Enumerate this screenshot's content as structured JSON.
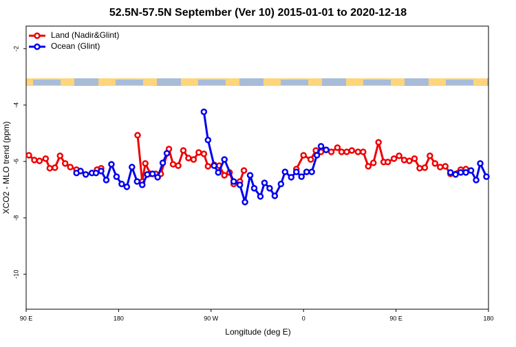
{
  "chart_data": {
    "type": "line",
    "title": "52.5N-57.5N September (Ver 10)   2015-01-01 to 2020-12-18",
    "x_label": "Longitude (deg E)",
    "y_label": "XCO2 - MLO trend (ppm)",
    "xlim": [
      90,
      540
    ],
    "ylim": [
      -11.24,
      -1.2
    ],
    "xticks": [
      {
        "value": 90,
        "label": "90 E"
      },
      {
        "value": 180,
        "label": "180"
      },
      {
        "value": 270,
        "label": "90 W"
      },
      {
        "value": 360,
        "label": "0"
      },
      {
        "value": 450,
        "label": "90 E"
      },
      {
        "value": 540,
        "label": "180"
      }
    ],
    "yticks": [
      -2,
      -4,
      -6,
      -8,
      -10
    ],
    "legend": "top-left",
    "series": [
      {
        "name": "Land (Nadir&Glint)",
        "color": "#ee0000",
        "x": [
          92.7,
          98,
          103,
          109,
          113,
          118,
          123,
          128,
          133,
          139,
          null,
          159,
          163,
          null,
          198.5,
          203,
          206,
          211,
          216,
          221,
          229,
          233,
          238,
          243,
          248,
          253,
          258,
          263,
          267,
          273,
          278,
          283,
          288,
          292,
          298,
          302,
          null,
          353,
          360,
          367,
          372,
          377,
          382,
          387,
          393,
          397,
          402,
          407,
          413,
          418,
          423,
          428,
          433,
          438,
          442,
          448,
          453,
          458,
          463,
          468,
          473,
          478,
          483,
          488,
          493,
          498,
          503,
          513,
          518
        ],
        "values": [
          -5.78,
          -5.95,
          -5.98,
          -5.9,
          -6.24,
          -6.22,
          -5.8,
          -6.07,
          -6.2,
          -6.29,
          null,
          -6.29,
          -6.24,
          null,
          -5.07,
          -6.71,
          -6.07,
          -6.44,
          -6.44,
          -6.44,
          -5.56,
          -6.1,
          -6.15,
          -5.61,
          -5.88,
          -5.93,
          -5.68,
          -5.73,
          -6.17,
          -6.12,
          -6.15,
          -6.49,
          -6.39,
          -6.8,
          -6.71,
          -6.32,
          null,
          -6.27,
          -5.78,
          -5.93,
          -5.61,
          -5.66,
          -5.59,
          -5.66,
          -5.51,
          -5.66,
          -5.66,
          -5.61,
          -5.66,
          -5.66,
          -6.17,
          -6.05,
          -5.32,
          -6.02,
          -6.02,
          -5.9,
          -5.8,
          -5.95,
          -5.98,
          -5.9,
          -6.24,
          -6.22,
          -5.8,
          -6.07,
          -6.2,
          -6.17,
          -6.44,
          -6.29,
          -6.27
        ]
      },
      {
        "name": "Ocean (Glint)",
        "color": "#0000ee",
        "x": [
          139,
          143,
          148,
          154,
          158,
          163,
          168,
          173,
          178,
          183,
          188,
          193,
          198,
          203,
          208,
          213,
          218,
          223,
          227,
          null,
          263,
          267,
          273,
          277,
          283,
          292,
          298,
          303,
          308,
          312,
          318,
          322,
          327,
          332,
          338,
          342,
          348,
          353,
          358,
          363,
          368,
          373,
          377,
          382,
          null,
          503,
          508,
          513,
          518,
          523,
          528,
          532,
          538
        ],
        "values": [
          -6.41,
          -6.34,
          -6.46,
          -6.41,
          -6.41,
          -6.34,
          -6.66,
          -6.1,
          -6.54,
          -6.8,
          -6.9,
          -6.2,
          -6.71,
          -6.83,
          -6.46,
          -6.44,
          -6.56,
          -6.05,
          -5.71,
          null,
          -4.24,
          -5.24,
          -6.15,
          -6.39,
          -5.93,
          -6.71,
          -6.83,
          -7.44,
          -6.49,
          -6.95,
          -7.24,
          -6.76,
          -6.95,
          -7.22,
          -6.8,
          -6.37,
          -6.56,
          -6.37,
          -6.54,
          -6.37,
          -6.37,
          -5.78,
          -5.46,
          -5.59,
          null,
          -6.39,
          -6.46,
          -6.39,
          -6.39,
          -6.32,
          -6.66,
          -6.07,
          -6.54
        ]
      }
    ]
  }
}
